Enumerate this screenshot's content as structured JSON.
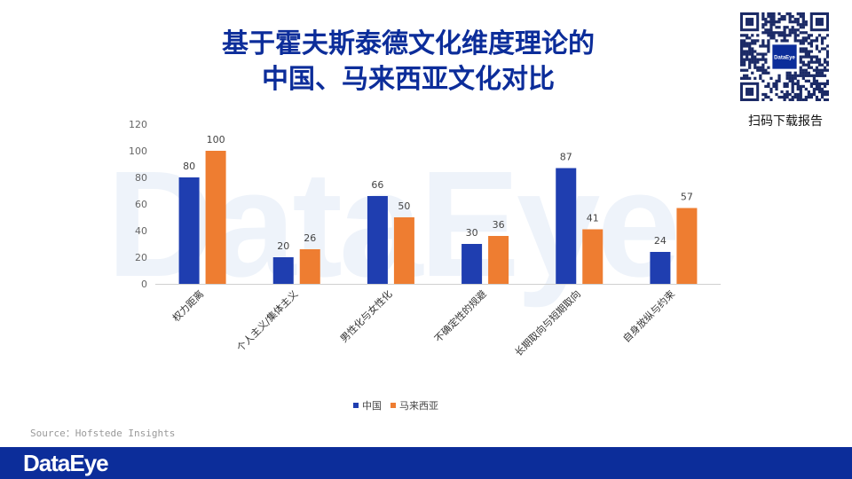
{
  "watermark": "DataEye",
  "title_line1": "基于霍夫斯泰德文化维度理论的",
  "title_line2": "中国、马来西亚文化对比",
  "qr": {
    "caption": "扫码下载报告",
    "logo_text": "DataEye"
  },
  "source": "Source：Hofstede Insights",
  "footer": {
    "logo": "DataEye"
  },
  "colors": {
    "china": "#1f3eb0",
    "malaysia": "#ee7d31",
    "title": "#0c2d9a",
    "footer": "#0c2d9a"
  },
  "chart_data": {
    "type": "bar",
    "categories": [
      "权力距离",
      "个人主义/集体主义",
      "男性化与女性化",
      "不确定性的规避",
      "长期取向与短期取向",
      "自身放纵与约束"
    ],
    "series": [
      {
        "name": "中国",
        "values": [
          80,
          20,
          66,
          30,
          87,
          24
        ],
        "color": "#1f3eb0"
      },
      {
        "name": "马来西亚",
        "values": [
          100,
          26,
          50,
          36,
          41,
          57
        ],
        "color": "#ee7d31"
      }
    ],
    "yticks": [
      "0",
      "20",
      "40",
      "60",
      "80",
      "100",
      "120"
    ],
    "ylim": [
      0,
      120
    ],
    "grid": false,
    "legend": "bottom"
  }
}
